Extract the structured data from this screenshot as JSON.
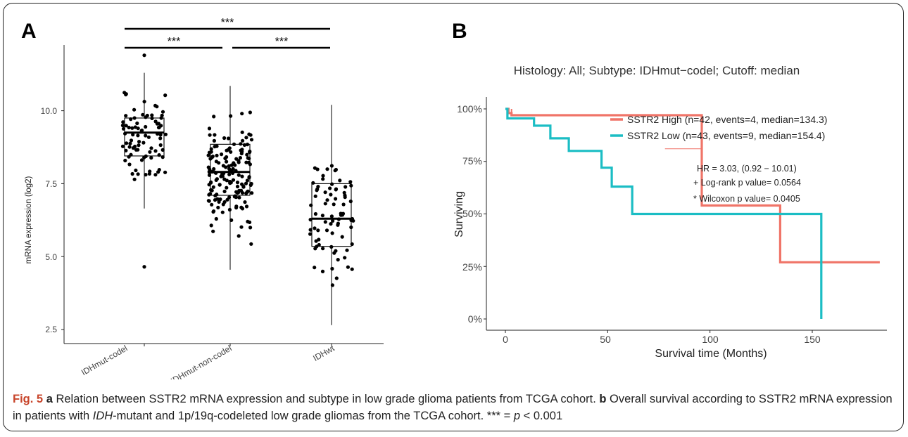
{
  "panel_a": {
    "letter": "A",
    "ylabel": "mRNA expression (log2)",
    "y_ticks": [
      "2.5",
      "5.0",
      "7.5",
      "10.0"
    ],
    "categories": [
      "IDHmut-codel",
      "IDHmut-non-codel",
      "IDHwt"
    ],
    "significance": [
      "***",
      "***",
      "***"
    ]
  },
  "panel_b": {
    "letter": "B",
    "title": "Histology: All; Subtype: IDHmut−codel; Cutoff: median",
    "ylabel": "Surviving",
    "xlabel": "Survival time (Months)",
    "y_ticks": [
      "0%",
      "25%",
      "50%",
      "75%",
      "100%"
    ],
    "x_ticks": [
      "0",
      "50",
      "100",
      "150"
    ],
    "legend": [
      {
        "label": "SSTR2 High (n=42, events=4, median=134.3)",
        "color": "#f07468"
      },
      {
        "label": "SSTR2 Low (n=43, events=9, median=154.4)",
        "color": "#1bbdc4"
      }
    ],
    "stats": [
      "HR = 3.03, (0.92 − 10.01)",
      "+ Log-rank p value= 0.0564",
      "* Wilcoxon p value= 0.0405"
    ]
  },
  "caption": {
    "fig_label": "Fig. 5",
    "a_letter": "a",
    "a_text": " Relation between SSTR2 mRNA expression and subtype in low grade glioma patients from TCGA cohort. ",
    "b_letter": "b",
    "b_text1": " Overall survival according to SSTR2 mRNA expression in patients with ",
    "idh_italic": "IDH",
    "b_text2": "-mutant and 1p/19q-codeleted low grade gliomas from the TCGA cohort. *** = ",
    "p_italic": "p",
    "b_text3": " < 0.001"
  },
  "chart_data": [
    {
      "type": "box",
      "title": "",
      "ylabel": "mRNA expression (log2)",
      "xlabel": "",
      "ylim": [
        2.3,
        12.3
      ],
      "categories": [
        "IDHmut-codel",
        "IDHmut-non-codel",
        "IDHwt"
      ],
      "boxes": [
        {
          "category": "IDHmut-codel",
          "whisker_low": 6.65,
          "q1": 8.45,
          "median": 9.25,
          "q3": 9.75,
          "whisker_high": 11.3
        },
        {
          "category": "IDHmut-non-codel",
          "whisker_low": 4.55,
          "q1": 7.1,
          "median": 7.9,
          "q3": 8.85,
          "whisker_high": 10.85
        },
        {
          "category": "IDHwt",
          "whisker_low": 2.65,
          "q1": 5.35,
          "median": 6.3,
          "q3": 7.5,
          "whisker_high": 10.2
        }
      ],
      "outliers": [
        {
          "category": "IDHmut-codel",
          "values": [
            11.9,
            4.65
          ]
        }
      ],
      "jitter_counts": [
        85,
        165,
        78
      ],
      "comparisons": [
        {
          "from": "IDHmut-codel",
          "to": "IDHmut-non-codel",
          "label": "***"
        },
        {
          "from": "IDHmut-non-codel",
          "to": "IDHwt",
          "label": "***"
        },
        {
          "from": "IDHmut-codel",
          "to": "IDHwt",
          "label": "***"
        }
      ]
    },
    {
      "type": "line",
      "subtype": "kaplan-meier",
      "title": "Histology: All; Subtype: IDHmut−codel; Cutoff: median",
      "xlabel": "Survival time (Months)",
      "ylabel": "Surviving",
      "xlim": [
        0,
        185
      ],
      "ylim": [
        0,
        1
      ],
      "series": [
        {
          "name": "SSTR2 High (n=42, events=4, median=134.3)",
          "color": "#f07468",
          "x": [
            0,
            1.5,
            1.5,
            3,
            3,
            96,
            96,
            134.3,
            134.3,
            183
          ],
          "y": [
            1.0,
            1.0,
            0.98,
            0.98,
            0.97,
            0.97,
            0.54,
            0.54,
            0.27,
            0.27
          ]
        },
        {
          "name": "SSTR2 Low (n=43, events=9, median=154.4)",
          "color": "#1bbdc4",
          "x": [
            0,
            1,
            1,
            14,
            14,
            22,
            22,
            31,
            31,
            47,
            47,
            52,
            52,
            62,
            62,
            154.4,
            154.4
          ],
          "y": [
            1.0,
            1.0,
            0.955,
            0.955,
            0.92,
            0.92,
            0.86,
            0.86,
            0.8,
            0.8,
            0.72,
            0.72,
            0.63,
            0.63,
            0.5,
            0.5,
            0.0
          ]
        }
      ],
      "annotations": [
        "HR = 3.03, (0.92 − 10.01)",
        "+ Log-rank p value= 0.0564",
        "* Wilcoxon p value= 0.0405"
      ]
    }
  ]
}
